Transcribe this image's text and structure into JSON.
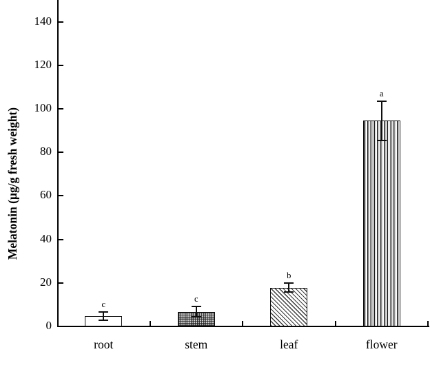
{
  "figure": {
    "background": "#ffffff",
    "axis_color": "#000000",
    "text_color": "#000000"
  },
  "chart_data": {
    "type": "bar",
    "title": "",
    "xlabel": "",
    "ylabel": "Melatonin (µg/g fresh weight)",
    "categories": [
      "root",
      "stem",
      "leaf",
      "flower"
    ],
    "values": [
      4.7,
      6.8,
      17.8,
      94.5
    ],
    "error_bars": [
      2.0,
      2.3,
      2.0,
      9.0
    ],
    "significance_letters": [
      "c",
      "c",
      "b",
      "a"
    ],
    "bar_patterns": [
      "plain-white",
      "fine-crosshatch",
      "diagonal-hatch",
      "vertical-lines"
    ],
    "bar_fill_base": "#ffffff",
    "bar_outline_color": "#000000",
    "yticks": [
      0,
      20,
      40,
      60,
      80,
      100,
      120,
      140
    ],
    "ylim": [
      0,
      150
    ],
    "grid": false,
    "legend": "none",
    "bar_width_ratio": 0.4
  }
}
